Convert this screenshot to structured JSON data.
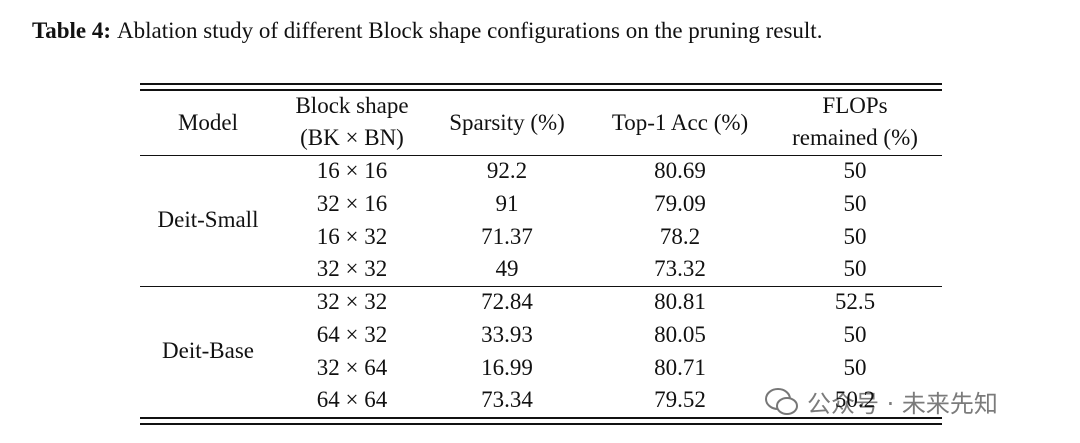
{
  "caption": {
    "label": "Table 4:",
    "text": "Ablation study of different Block shape configurations on the pruning result."
  },
  "table": {
    "header": [
      [
        "Model"
      ],
      [
        "Block shape",
        "(BK × BN)"
      ],
      [
        "Sparsity (%)"
      ],
      [
        "Top-1 Acc (%)"
      ],
      [
        "FLOPs",
        "remained (%)"
      ]
    ],
    "groups": [
      {
        "model": "Deit-Small",
        "rows": [
          [
            "16 × 16",
            "92.2",
            "80.69",
            "50"
          ],
          [
            "32 × 16",
            "91",
            "79.09",
            "50"
          ],
          [
            "16 × 32",
            "71.37",
            "78.2",
            "50"
          ],
          [
            "32 × 32",
            "49",
            "73.32",
            "50"
          ]
        ]
      },
      {
        "model": "Deit-Base",
        "rows": [
          [
            "32 × 32",
            "72.84",
            "80.81",
            "52.5"
          ],
          [
            "64 × 32",
            "33.93",
            "80.05",
            "50"
          ],
          [
            "32 × 64",
            "16.99",
            "80.71",
            "50"
          ],
          [
            "64 × 64",
            "73.34",
            "79.52",
            "50.2"
          ]
        ]
      }
    ]
  },
  "watermark": "公众号 · 未来先知"
}
